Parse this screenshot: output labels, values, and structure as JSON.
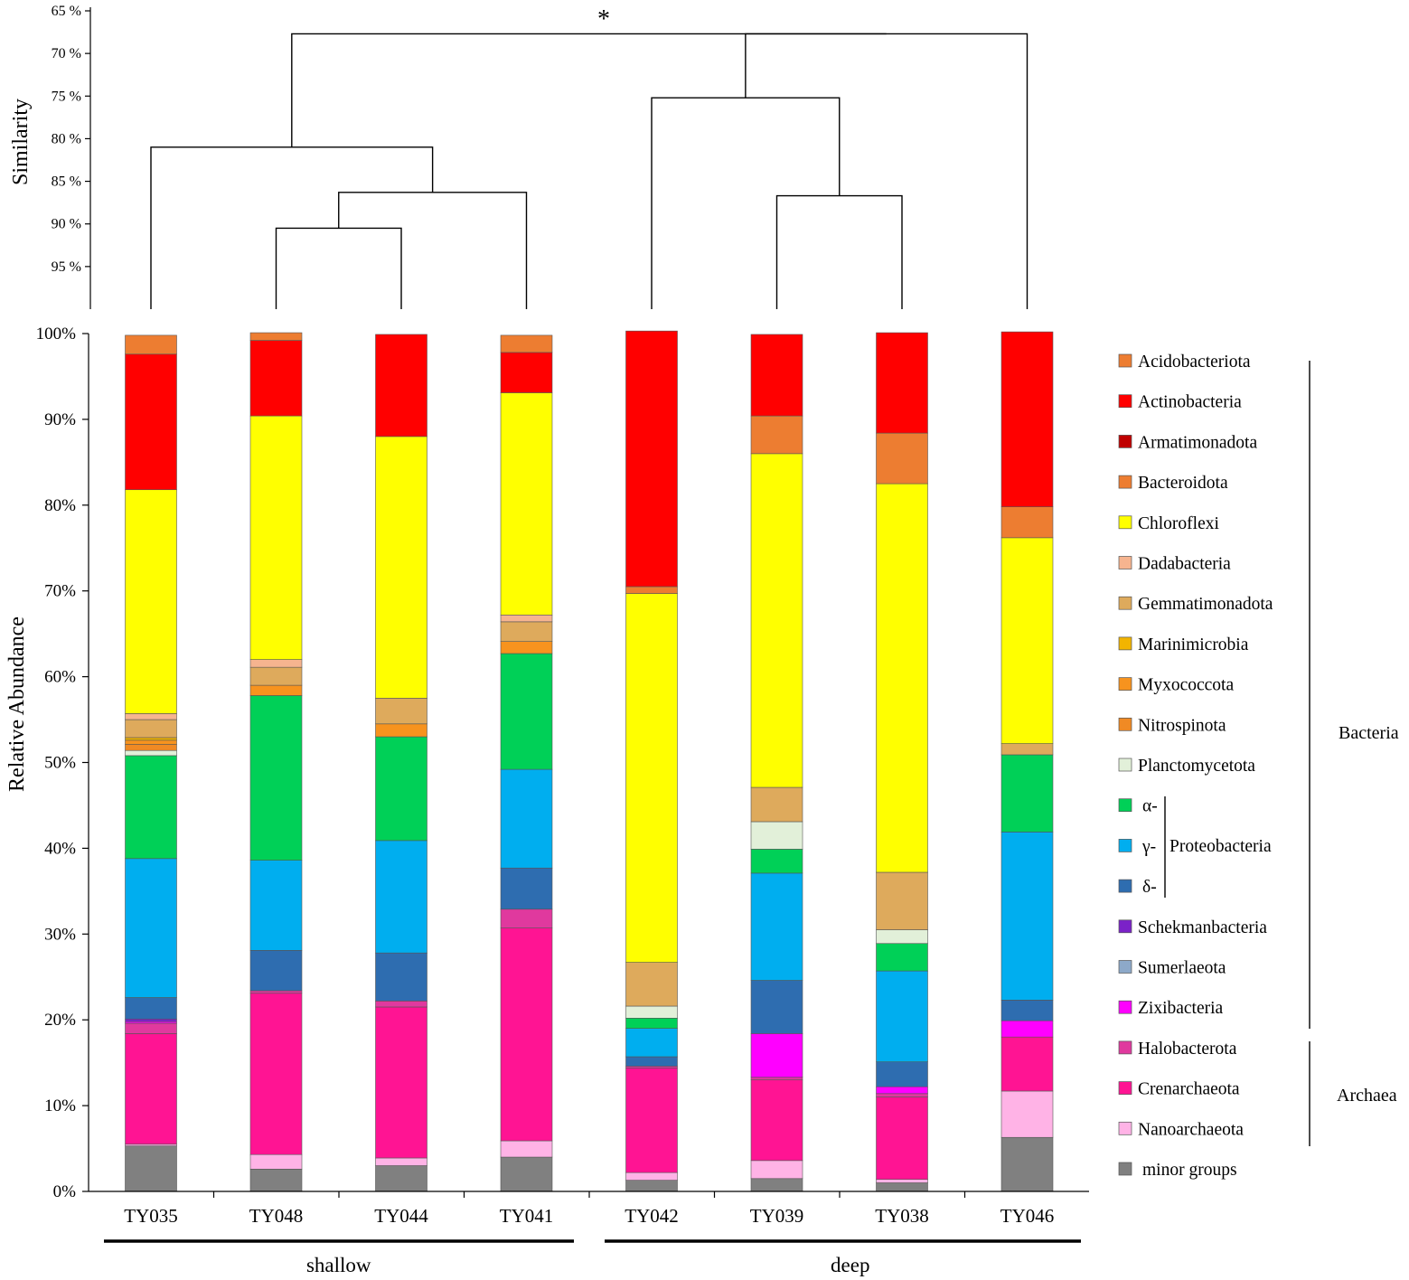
{
  "chart_data": {
    "type": "stacked-bar",
    "title": "",
    "ylabel": "Relative Abundance",
    "ylim": [
      0,
      100
    ],
    "yticks": [
      "0%",
      "10%",
      "20%",
      "30%",
      "40%",
      "50%",
      "60%",
      "70%",
      "80%",
      "90%",
      "100%"
    ],
    "categories": [
      "TY035",
      "TY048",
      "TY044",
      "TY041",
      "TY042",
      "TY039",
      "TY038",
      "TY046"
    ],
    "groups": [
      {
        "label": "shallow",
        "members": [
          "TY035",
          "TY048",
          "TY044",
          "TY041"
        ]
      },
      {
        "label": "deep",
        "members": [
          "TY042",
          "TY039",
          "TY038",
          "TY046"
        ]
      }
    ],
    "series": [
      {
        "name": "minor groups",
        "color": "#808080",
        "values": [
          5.3,
          2.6,
          3.0,
          4.0,
          1.3,
          1.5,
          1.0,
          6.3
        ]
      },
      {
        "name": "Nanoarchaeota",
        "color": "#ffb3e6",
        "values": [
          0.2,
          1.7,
          0.9,
          1.9,
          0.9,
          2.1,
          0.4,
          5.4
        ]
      },
      {
        "name": "Crenarchaeota",
        "color": "#ff1493",
        "values": [
          12.9,
          18.8,
          17.6,
          24.8,
          12.2,
          9.4,
          9.6,
          6.3
        ]
      },
      {
        "name": "Halobacterota",
        "color": "#e0399e",
        "values": [
          1.2,
          0.3,
          0.7,
          2.2,
          0.2,
          0.3,
          0.4,
          0.0
        ]
      },
      {
        "name": "Zixibacteria",
        "color": "#ff00ff",
        "values": [
          0.2,
          0.0,
          0.0,
          0.0,
          0.0,
          5.1,
          0.8,
          1.9
        ]
      },
      {
        "name": "Sumerlaeota",
        "color": "#8da9c9",
        "values": [
          0.0,
          0.0,
          0.0,
          0.0,
          0.0,
          0.0,
          0.0,
          0.0
        ]
      },
      {
        "name": "Schekmanbacteria",
        "color": "#7b22c8",
        "values": [
          0.3,
          0.0,
          0.0,
          0.0,
          0.0,
          0.0,
          0.0,
          0.0
        ]
      },
      {
        "name": "δ-",
        "color": "#2e6db0",
        "values": [
          2.5,
          4.7,
          5.6,
          4.8,
          1.1,
          6.2,
          2.9,
          2.4
        ]
      },
      {
        "name": "γ-",
        "color": "#00aeef",
        "values": [
          16.2,
          10.5,
          13.1,
          11.5,
          3.3,
          12.5,
          10.6,
          19.6
        ]
      },
      {
        "name": "α-",
        "color": "#00d057",
        "values": [
          12.0,
          19.2,
          12.1,
          13.5,
          1.2,
          2.8,
          3.2,
          9.0
        ]
      },
      {
        "name": "Planctomycetota",
        "color": "#e2f0d9",
        "values": [
          0.6,
          0.0,
          0.0,
          0.0,
          1.4,
          3.2,
          1.6,
          0.0
        ]
      },
      {
        "name": "Nitrospinota",
        "color": "#f08a24",
        "values": [
          0.7,
          0.0,
          0.0,
          0.0,
          0.0,
          0.0,
          0.0,
          0.0
        ]
      },
      {
        "name": "Myxococcota",
        "color": "#f7931e",
        "values": [
          0.5,
          1.2,
          1.5,
          1.4,
          0.0,
          0.0,
          0.0,
          0.0
        ]
      },
      {
        "name": "Marinimicrobia",
        "color": "#f2b400",
        "values": [
          0.3,
          0.0,
          0.0,
          0.0,
          0.0,
          0.0,
          0.0,
          0.0
        ]
      },
      {
        "name": "Gemmatimonadota",
        "color": "#deaa5c",
        "values": [
          2.1,
          2.1,
          3.0,
          2.3,
          5.1,
          4.0,
          6.7,
          1.3
        ]
      },
      {
        "name": "Dadabacteria",
        "color": "#f6b48f",
        "values": [
          0.7,
          0.9,
          0.0,
          0.8,
          0.0,
          0.0,
          0.0,
          0.0
        ]
      },
      {
        "name": "Chloroflexi",
        "color": "#ffff00",
        "values": [
          26.1,
          28.4,
          30.5,
          25.9,
          43.0,
          38.9,
          45.3,
          24.0
        ]
      },
      {
        "name": "Bacteroidota",
        "color": "#ed7d31",
        "values": [
          0.0,
          0.0,
          0.0,
          0.0,
          0.8,
          4.4,
          5.9,
          3.6
        ]
      },
      {
        "name": "Armatimonadota",
        "color": "#c00000",
        "values": [
          0.0,
          0.0,
          0.0,
          0.0,
          0.0,
          0.0,
          0.0,
          0.0
        ]
      },
      {
        "name": "Actinobacteria",
        "color": "#ff0000",
        "values": [
          15.8,
          8.8,
          11.9,
          4.7,
          29.8,
          9.5,
          11.7,
          20.4
        ]
      },
      {
        "name": "Acidobacteriota",
        "color": "#ed7d31",
        "values": [
          2.2,
          0.9,
          0.0,
          2.0,
          0.0,
          0.0,
          0.0,
          0.0
        ]
      }
    ],
    "legend": {
      "items": [
        {
          "label": "Acidobacteriota",
          "color": "#ed7d31"
        },
        {
          "label": "Actinobacteria",
          "color": "#ff0000"
        },
        {
          "label": "Armatimonadota",
          "color": "#c00000"
        },
        {
          "label": "Bacteroidota",
          "color": "#ed7d31"
        },
        {
          "label": "Chloroflexi",
          "color": "#ffff00"
        },
        {
          "label": "Dadabacteria",
          "color": "#f6b48f"
        },
        {
          "label": "Gemmatimonadota",
          "color": "#deaa5c"
        },
        {
          "label": "Marinimicrobia",
          "color": "#f2b400"
        },
        {
          "label": "Myxococcota",
          "color": "#f7931e"
        },
        {
          "label": "Nitrospinota",
          "color": "#f08a24"
        },
        {
          "label": "Planctomycetota",
          "color": "#e2f0d9"
        },
        {
          "label": "α-",
          "color": "#00d057"
        },
        {
          "label": "γ-",
          "color": "#00aeef"
        },
        {
          "label": "δ-",
          "color": "#2e6db0"
        },
        {
          "label": "Schekmanbacteria",
          "color": "#7b22c8"
        },
        {
          "label": "Sumerlaeota",
          "color": "#8da9c9"
        },
        {
          "label": "Zixibacteria",
          "color": "#ff00ff"
        },
        {
          "label": "Halobacterota",
          "color": "#e0399e"
        },
        {
          "label": "Crenarchaeota",
          "color": "#ff1493"
        },
        {
          "label": "Nanoarchaeota",
          "color": "#ffb3e6"
        },
        {
          "label": "minor groups",
          "color": "#808080"
        }
      ],
      "proteobacteria_label": "Proteobacteria",
      "domain_labels": [
        "Bacteria",
        "Archaea"
      ]
    },
    "dendrogram": {
      "ylabel": "Similarity",
      "yticks": [
        "65 %",
        "70 %",
        "75 %",
        "80 %",
        "85 %",
        "90 %",
        "95 %"
      ],
      "ylim": [
        65,
        100
      ],
      "significance_marker": "*",
      "merges": [
        {
          "a": "TY048",
          "b": "TY044",
          "similarity": 90.5
        },
        {
          "a": "TY048+TY044",
          "b": "TY041",
          "similarity": 86.3
        },
        {
          "a": "TY035",
          "b": "TY048+TY044+TY041",
          "similarity": 81.0
        },
        {
          "a": "TY039",
          "b": "TY038",
          "similarity": 86.7
        },
        {
          "a": "TY042",
          "b": "TY039+TY038",
          "similarity": 75.2
        },
        {
          "a": "TY042+TY039+TY038",
          "b": "TY046",
          "similarity": 67.7
        },
        {
          "a": "shallow",
          "b": "deep",
          "similarity": 67.7
        }
      ]
    }
  }
}
